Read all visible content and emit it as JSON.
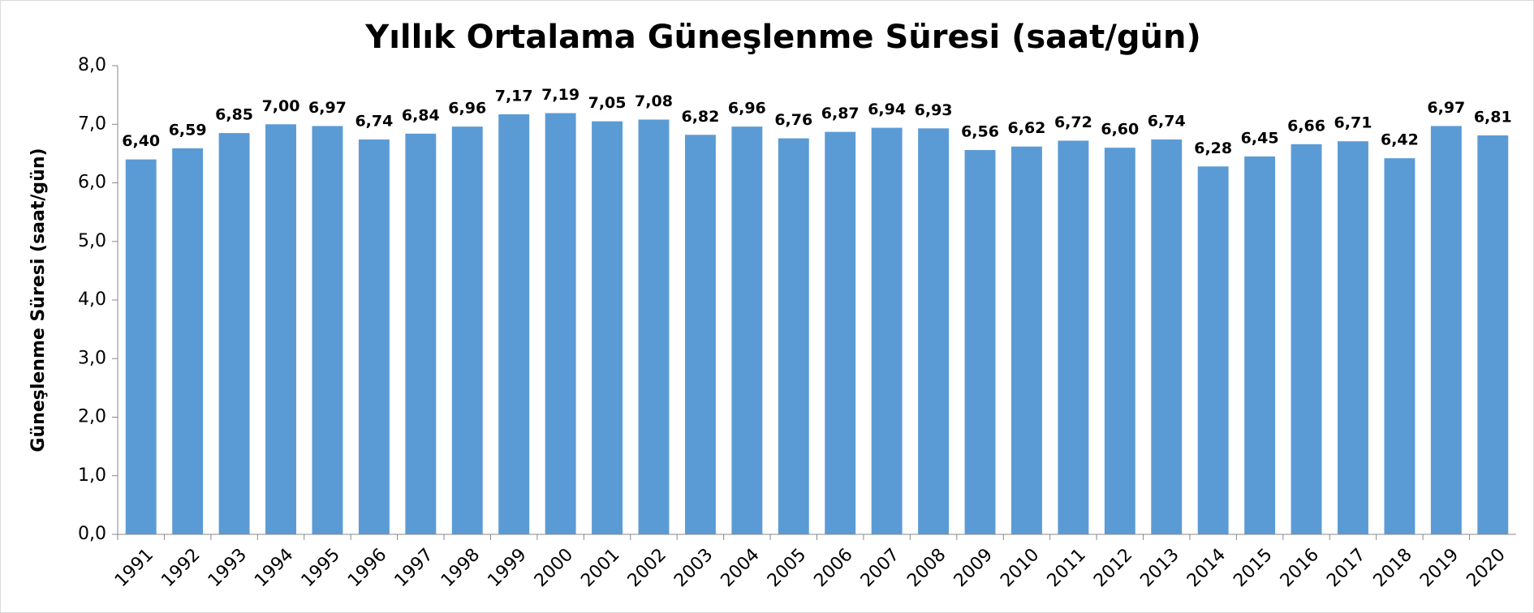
{
  "chart_data": {
    "type": "bar",
    "title": "Yıllık Ortalama Güneşlenme Süresi (saat/gün)",
    "y_label": "Güneşlenme Süresi (saat/gün)",
    "categories": [
      "1991",
      "1992",
      "1993",
      "1994",
      "1995",
      "1996",
      "1997",
      "1998",
      "1999",
      "2000",
      "2001",
      "2002",
      "2003",
      "2004",
      "2005",
      "2006",
      "2007",
      "2008",
      "2009",
      "2010",
      "2011",
      "2012",
      "2013",
      "2014",
      "2015",
      "2016",
      "2017",
      "2018",
      "2019",
      "2020"
    ],
    "values": [
      6.4,
      6.59,
      6.85,
      7.0,
      6.97,
      6.74,
      6.84,
      6.96,
      7.17,
      7.19,
      7.05,
      7.08,
      6.82,
      6.96,
      6.76,
      6.87,
      6.94,
      6.93,
      6.56,
      6.62,
      6.72,
      6.6,
      6.74,
      6.28,
      6.45,
      6.66,
      6.71,
      6.42,
      6.97,
      6.81
    ],
    "value_labels": [
      "6,40",
      "6,59",
      "6,85",
      "7,00",
      "6,97",
      "6,74",
      "6,84",
      "6,96",
      "7,17",
      "7,19",
      "7,05",
      "7,08",
      "6,82",
      "6,96",
      "6,76",
      "6,87",
      "6,94",
      "6,93",
      "6,56",
      "6,62",
      "6,72",
      "6,60",
      "6,74",
      "6,28",
      "6,45",
      "6,66",
      "6,71",
      "6,42",
      "6,97",
      "6,81"
    ],
    "color": "#5b9bd5",
    "ylim": [
      0,
      8
    ],
    "yticks": [
      {
        "value": 0,
        "label": "0,0"
      },
      {
        "value": 1,
        "label": "1,0"
      },
      {
        "value": 2,
        "label": "2,0"
      },
      {
        "value": 3,
        "label": "3,0"
      },
      {
        "value": 4,
        "label": "4,0"
      },
      {
        "value": 5,
        "label": "5,0"
      },
      {
        "value": 6,
        "label": "6,0"
      },
      {
        "value": 7,
        "label": "7,0"
      },
      {
        "value": 8,
        "label": "8,0"
      }
    ],
    "grid": false
  }
}
